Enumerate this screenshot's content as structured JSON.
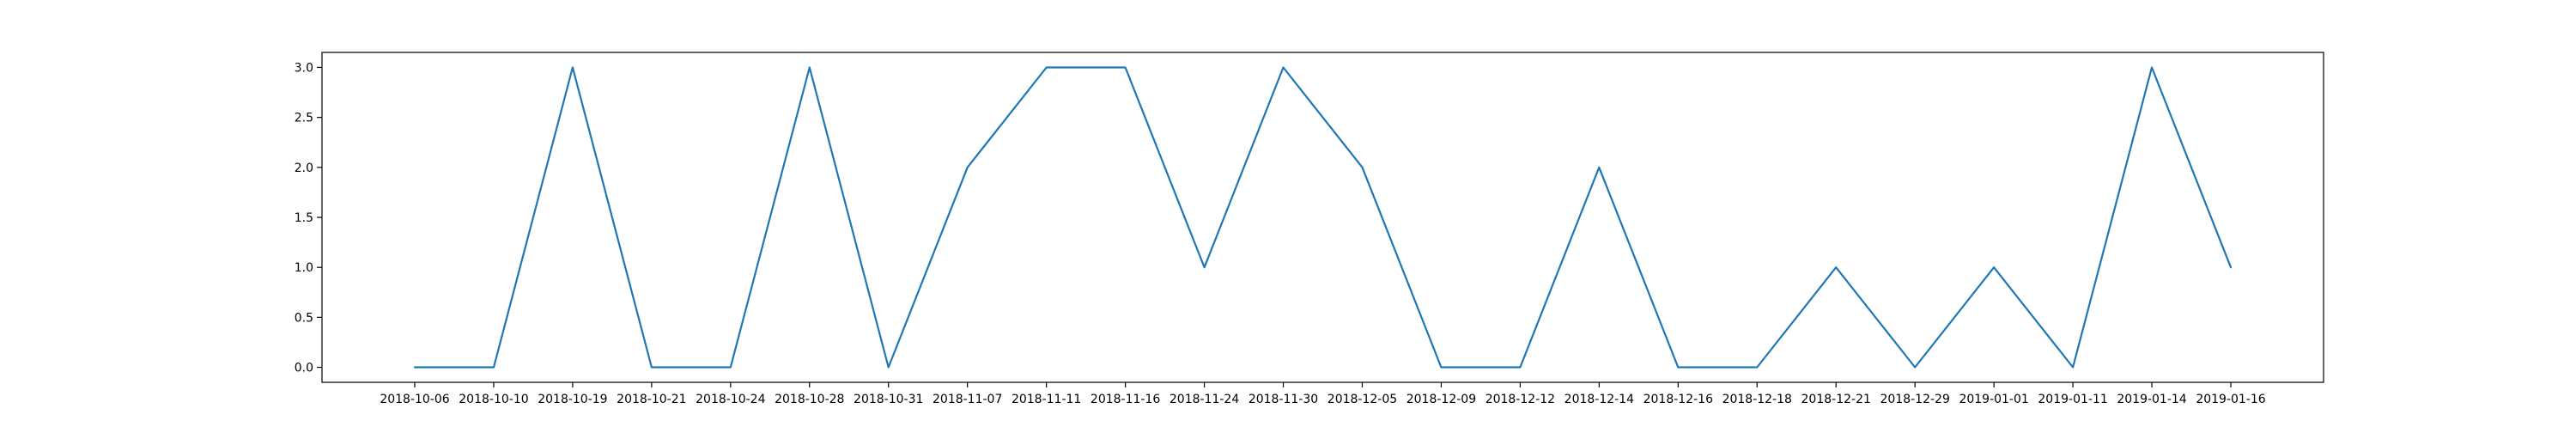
{
  "chart_data": {
    "type": "line",
    "title": "",
    "xlabel": "",
    "ylabel": "",
    "grid": false,
    "legend": false,
    "ylim": [
      -0.15,
      3.15
    ],
    "yticks": [
      0.0,
      0.5,
      1.0,
      1.5,
      2.0,
      2.5,
      3.0
    ],
    "ytick_labels": [
      "0.0",
      "0.5",
      "1.0",
      "1.5",
      "2.0",
      "2.5",
      "3.0"
    ],
    "categories": [
      "2018-10-06",
      "2018-10-10",
      "2018-10-19",
      "2018-10-21",
      "2018-10-24",
      "2018-10-28",
      "2018-10-31",
      "2018-11-07",
      "2018-11-11",
      "2018-11-16",
      "2018-11-24",
      "2018-11-30",
      "2018-12-05",
      "2018-12-09",
      "2018-12-12",
      "2018-12-14",
      "2018-12-16",
      "2018-12-18",
      "2018-12-21",
      "2018-12-29",
      "2019-01-01",
      "2019-01-11",
      "2019-01-14",
      "2019-01-16"
    ],
    "series": [
      {
        "color": "#1f77b4",
        "values": [
          0,
          0,
          3,
          0,
          0,
          3,
          0,
          2,
          3,
          3,
          1,
          3,
          2,
          0,
          0,
          2,
          0,
          0,
          1,
          0,
          1,
          0,
          3,
          1
        ]
      }
    ]
  }
}
